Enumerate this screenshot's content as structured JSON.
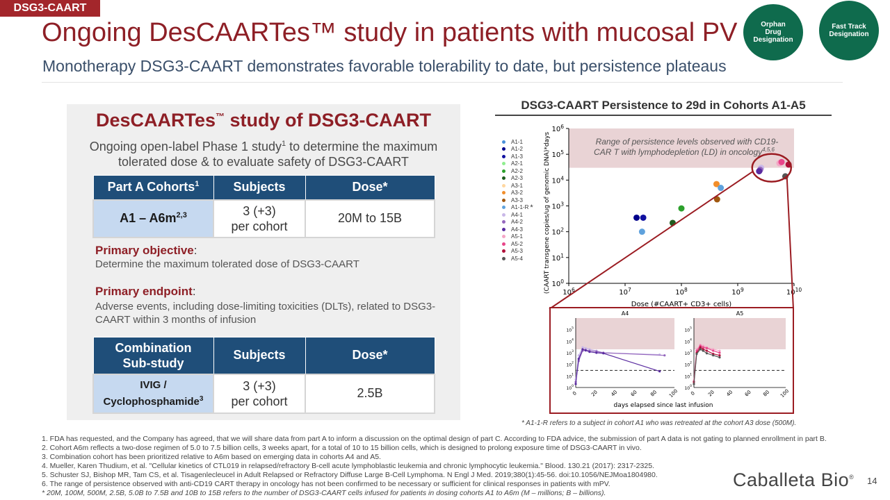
{
  "tag": "DSG3-CAART",
  "title": "Ongoing DesCAARTes™ study in patients with mucosal PV",
  "subtitle": "Monotherapy DSG3-CAART demonstrates favorable tolerability to date, but persistence plateaus",
  "badges": {
    "orphan": "Orphan Drug Designation",
    "fast_track": "Fast Track Designation"
  },
  "panel": {
    "title": "DesCAARTes",
    "title_tm": "™",
    "title_rest": " study of DSG3-CAART",
    "desc_a": "Ongoing open-label Phase 1 study",
    "desc_sup": "1",
    "desc_b": " to determine the maximum tolerated dose & to evaluate safety of DSG3-CAART",
    "table1": {
      "h1": "Part A Cohorts",
      "h1_sup": "1",
      "h2": "Subjects",
      "h3": "Dose*",
      "c1": "A1 – A6m",
      "c1_sup": "2,3",
      "c2a": "3 (+3)",
      "c2b": "per cohort",
      "c3": "20M to 15B"
    },
    "primary_objective_label": "Primary objective",
    "primary_objective_colon": ":",
    "primary_objective_text": "Determine the maximum tolerated dose of DSG3-CAART",
    "primary_endpoint_label": "Primary endpoint",
    "primary_endpoint_colon": ":",
    "primary_endpoint_text": "Adverse events, including dose-limiting toxicities (DLTs), related to DSG3-CAART within 3 months of infusion",
    "table2": {
      "h1a": "Combination",
      "h1b": "Sub-study",
      "h2": "Subjects",
      "h3": "Dose*",
      "c1a": "IVIG /",
      "c1b": "Cyclophosphamide",
      "c1_sup": "3",
      "c2a": "3 (+3)",
      "c2b": "per cohort",
      "c3": "2.5B"
    }
  },
  "chart_title": "DSG3-CAART Persistence to 29d in Cohorts A1-A5",
  "chart_caption": "* A1-1-R refers to a subject in cohort A1 who was retreated at the cohort A3 dose (500M).",
  "chart_data": [
    {
      "type": "scatter",
      "xlabel": "Dose (#CAART+ CD3+ cells)",
      "ylabel": "(CAART transgene copies/ug of genomic DNA)*days",
      "x_scale": "log",
      "y_scale": "log",
      "xlim": [
        1000000,
        10000000000
      ],
      "ylim": [
        1,
        1000000
      ],
      "x_ticks": [
        "10^6",
        "10^7",
        "10^8",
        "10^9",
        "10^10"
      ],
      "y_ticks": [
        "10^0",
        "10^1",
        "10^2",
        "10^3",
        "10^4",
        "10^5",
        "10^6"
      ],
      "band_label": "Range of persistence levels observed with CD19-CAR T with lymphodepletion (LD) in oncology",
      "band_sup": "4,5,6",
      "band_range": [
        30000,
        1000000
      ],
      "legend_marker_note": "*",
      "series": [
        {
          "name": "A1-1",
          "color": "#4a90d9",
          "points": []
        },
        {
          "name": "A1-2",
          "color": "#00008b",
          "points": [
            [
              16000000,
              350
            ]
          ]
        },
        {
          "name": "A1-3",
          "color": "#1010a0",
          "points": [
            [
              21000000,
              350
            ]
          ]
        },
        {
          "name": "A2-1",
          "color": "#90ee90",
          "points": []
        },
        {
          "name": "A2-2",
          "color": "#2ca02c",
          "points": [
            [
              100000000,
              800
            ]
          ]
        },
        {
          "name": "A2-3",
          "color": "#1f5c1f",
          "points": [
            [
              70000000,
              220
            ]
          ]
        },
        {
          "name": "A3-1",
          "color": "#ffd7a0",
          "points": []
        },
        {
          "name": "A3-2",
          "color": "#f28e2b",
          "points": [
            [
              420000000,
              7000
            ]
          ]
        },
        {
          "name": "A3-3",
          "color": "#a0580f",
          "points": [
            [
              430000000,
              1800
            ]
          ]
        },
        {
          "name": "A1-1-R",
          "color": "#5fa2dd",
          "points": [
            [
              500000000,
              5000
            ],
            [
              20000000,
              100
            ]
          ]
        },
        {
          "name": "A4-1",
          "color": "#c9b8e8",
          "points": [
            [
              2600000000,
              30000
            ]
          ]
        },
        {
          "name": "A4-2",
          "color": "#9467bd",
          "points": [
            [
              2500000000,
              25000
            ]
          ]
        },
        {
          "name": "A4-3",
          "color": "#5a2ca0",
          "points": [
            [
              2400000000,
              22000
            ]
          ]
        },
        {
          "name": "A5-1",
          "color": "#f4a6c6",
          "points": [
            [
              5500000000,
              45000
            ]
          ]
        },
        {
          "name": "A5-2",
          "color": "#e8468a",
          "points": [
            [
              6000000000,
              50000
            ]
          ]
        },
        {
          "name": "A5-3",
          "color": "#b0103a",
          "points": [
            [
              8000000000,
              40000
            ]
          ]
        },
        {
          "name": "A5-4",
          "color": "#555555",
          "points": [
            [
              7000000000,
              14000
            ]
          ]
        }
      ]
    },
    {
      "type": "line",
      "title": "A4",
      "xlabel": "days elapsed since last infusion",
      "y_scale": "log",
      "xlim": [
        0,
        100
      ],
      "ylim": [
        1,
        1000000
      ],
      "x_ticks": [
        "0",
        "20",
        "40",
        "60",
        "80",
        "100"
      ],
      "y_ticks": [
        "10^0",
        "10^1",
        "10^2",
        "10^3",
        "10^4",
        "10^5"
      ],
      "band_range": [
        2000,
        1000000
      ],
      "reference_line": 30,
      "series": [
        {
          "name": "A4-1",
          "color": "#c9b8e8",
          "x": [
            0,
            3,
            7,
            10,
            14,
            21,
            28,
            85
          ],
          "y": [
            5,
            600,
            3000,
            2500,
            2000,
            1500,
            1000,
            700
          ]
        },
        {
          "name": "A4-2",
          "color": "#9467bd",
          "x": [
            0,
            3,
            7,
            10,
            14,
            21,
            28,
            90
          ],
          "y": [
            3,
            200,
            1500,
            1800,
            1500,
            1300,
            1000,
            600
          ]
        },
        {
          "name": "A4-3",
          "color": "#5a2ca0",
          "x": [
            0,
            3,
            7,
            10,
            14,
            21,
            28,
            85
          ],
          "y": [
            2,
            300,
            2000,
            1600,
            1200,
            1000,
            900,
            25
          ]
        }
      ]
    },
    {
      "type": "line",
      "title": "A5",
      "xlabel": "days elapsed since last infusion",
      "y_scale": "log",
      "xlim": [
        0,
        100
      ],
      "ylim": [
        1,
        1000000
      ],
      "x_ticks": [
        "0",
        "20",
        "40",
        "60",
        "80",
        "100"
      ],
      "y_ticks": [
        "10^0",
        "10^1",
        "10^2",
        "10^3",
        "10^4",
        "10^5"
      ],
      "band_range": [
        2000,
        1000000
      ],
      "reference_line": 30,
      "series": [
        {
          "name": "A5-1",
          "color": "#f4a6c6",
          "x": [
            0,
            3,
            7,
            10,
            14,
            21,
            28
          ],
          "y": [
            4,
            2000,
            5000,
            4000,
            3000,
            2000,
            1500
          ]
        },
        {
          "name": "A5-2",
          "color": "#e8468a",
          "x": [
            0,
            3,
            7,
            10,
            14,
            21,
            28
          ],
          "y": [
            3,
            1500,
            4000,
            3000,
            2500,
            1500,
            1000
          ]
        },
        {
          "name": "A5-3",
          "color": "#b0103a",
          "x": [
            0,
            3,
            7,
            10,
            14,
            21,
            28
          ],
          "y": [
            3,
            1000,
            3000,
            2000,
            1500,
            800,
            600
          ]
        },
        {
          "name": "A5-4",
          "color": "#555555",
          "x": [
            0,
            3,
            7,
            10,
            14,
            21,
            28
          ],
          "y": [
            2,
            800,
            2000,
            1500,
            900,
            600,
            400
          ]
        }
      ]
    }
  ],
  "footnotes": [
    "1. FDA has requested, and the Company has agreed, that we will share data from part A to inform a discussion on the optimal design of part C. According to FDA advice, the submission of part A data is not gating to planned enrollment in part B.",
    "2. Cohort A6m reflects a two-dose regimen of 5.0 to 7.5 billion cells, 3 weeks apart, for a total of 10 to 15 billion cells, which is designed to prolong exposure time of DSG3-CAART in vivo.",
    "3. Combination cohort has been prioritized relative to A6m based on emerging data in cohorts A4 and A5.",
    "4. Mueller, Karen Thudium, et al. \"Cellular kinetics of CTL019 in relapsed/refractory B-cell acute lymphoblastic leukemia and chronic lymphocytic leukemia.\" Blood. 130.21 (2017): 2317-2325.",
    "5. Schuster SJ, Bishop MR, Tam CS, et al. Tisagenlecleucel in Adult Relapsed or Refractory Diffuse Large B-Cell Lymphoma. N Engl J Med. 2019;380(1):45-56. doi:10.1056/NEJMoa1804980.",
    "6. The range of persistence observed with anti-CD19 CART therapy in oncology has not been confirmed to be necessary or sufficient for clinical responses in patients with mPV.",
    "* 20M, 100M, 500M, 2.5B, 5.0B to 7.5B and 10B to 15B refers to the number of DSG3-CAART cells infused for patients in dosing cohorts A1 to A6m (M – millions; B – billions)."
  ],
  "logo": "Caballeta Bio",
  "logo_mark": "®",
  "page_number": "14",
  "colors": {
    "brand_red": "#8e1f26",
    "brand_green": "#0f6b4d",
    "table_header": "#1f4e79",
    "table_first_col": "#c6d9f0"
  }
}
